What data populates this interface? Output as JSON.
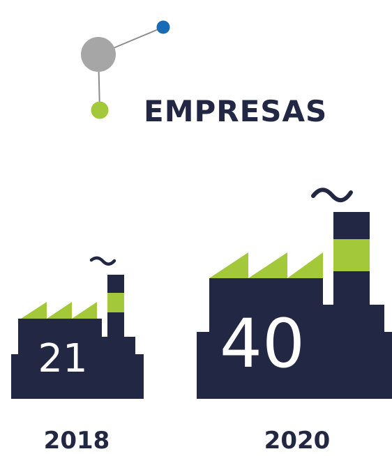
{
  "title": "EMPRESAS",
  "colors": {
    "navy": "#222744",
    "green": "#a3c93a",
    "gray": "#a6a6a6",
    "blue": "#1a6bb5",
    "line": "#8c8c8c"
  },
  "icons": [
    "molecule-icon",
    "factory-icon"
  ],
  "factories": [
    {
      "year": "2018",
      "count": "21"
    },
    {
      "year": "2020",
      "count": "40"
    }
  ]
}
